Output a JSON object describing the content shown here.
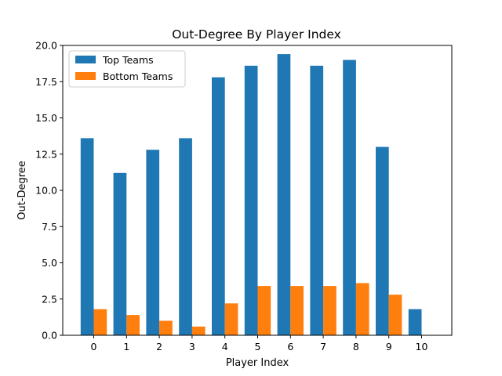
{
  "chart_data": {
    "type": "bar",
    "title": "Out-Degree By Player Index",
    "xlabel": "Player Index",
    "ylabel": "Out-Degree",
    "categories": [
      "0",
      "1",
      "2",
      "3",
      "4",
      "5",
      "6",
      "7",
      "8",
      "9",
      "10"
    ],
    "series": [
      {
        "name": "Top Teams",
        "color": "#1f77b4",
        "values": [
          13.6,
          11.2,
          12.8,
          13.6,
          17.8,
          18.6,
          19.4,
          18.6,
          19.0,
          13.0,
          1.8
        ]
      },
      {
        "name": "Bottom Teams",
        "color": "#ff7f0e",
        "values": [
          1.8,
          1.4,
          1.0,
          0.6,
          2.2,
          3.4,
          3.4,
          3.4,
          3.6,
          2.8,
          null
        ]
      }
    ],
    "ylim": [
      0,
      20.0
    ],
    "yticks": [
      "0.0",
      "2.5",
      "5.0",
      "7.5",
      "10.0",
      "12.5",
      "15.0",
      "17.5",
      "20.0"
    ],
    "grid": false,
    "legend_position": "top-left"
  }
}
